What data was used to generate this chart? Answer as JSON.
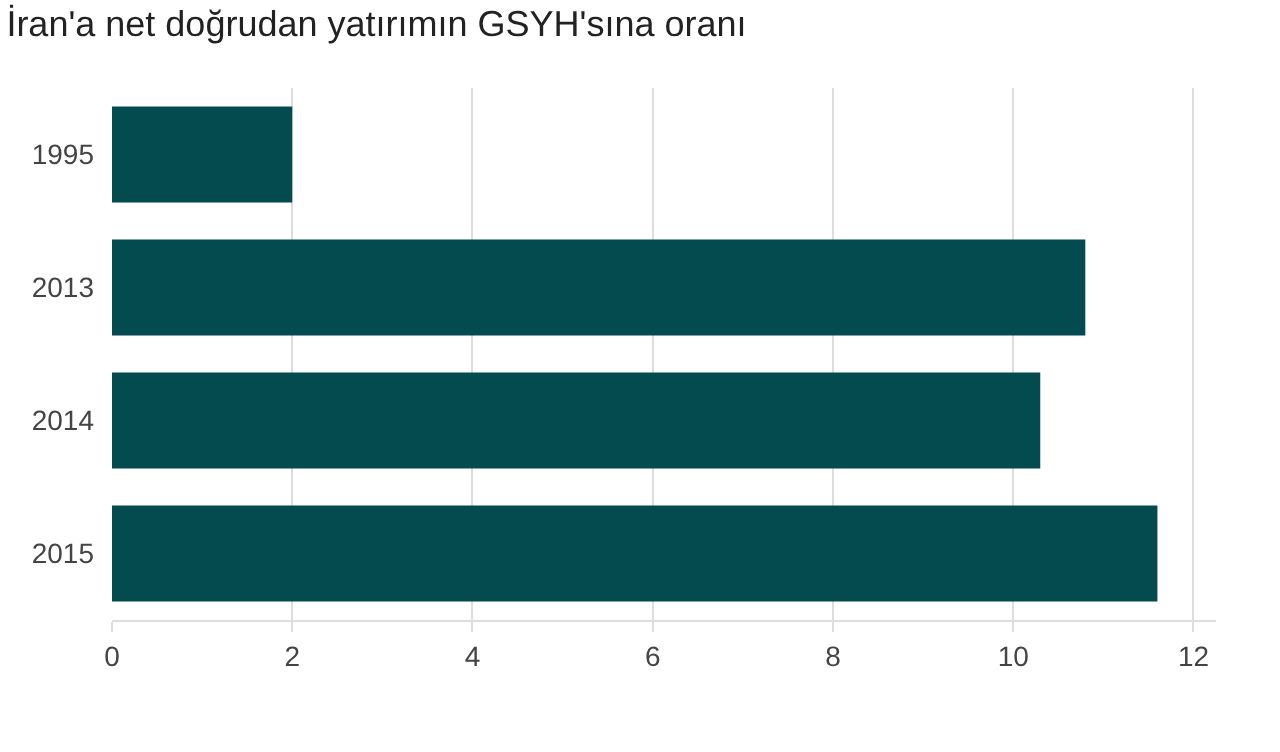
{
  "chart_data": {
    "type": "bar",
    "orientation": "horizontal",
    "title": "İran'a net doğrudan yatırımın GSYH'sına oranı",
    "categories": [
      "1995",
      "2013",
      "2014",
      "2015"
    ],
    "values": [
      2,
      10.8,
      10.3,
      11.6
    ],
    "color": "#034b4e",
    "xlim": [
      0,
      12.25
    ],
    "xticks": [
      0,
      2,
      4,
      6,
      8,
      10,
      12
    ],
    "grid": "x"
  }
}
